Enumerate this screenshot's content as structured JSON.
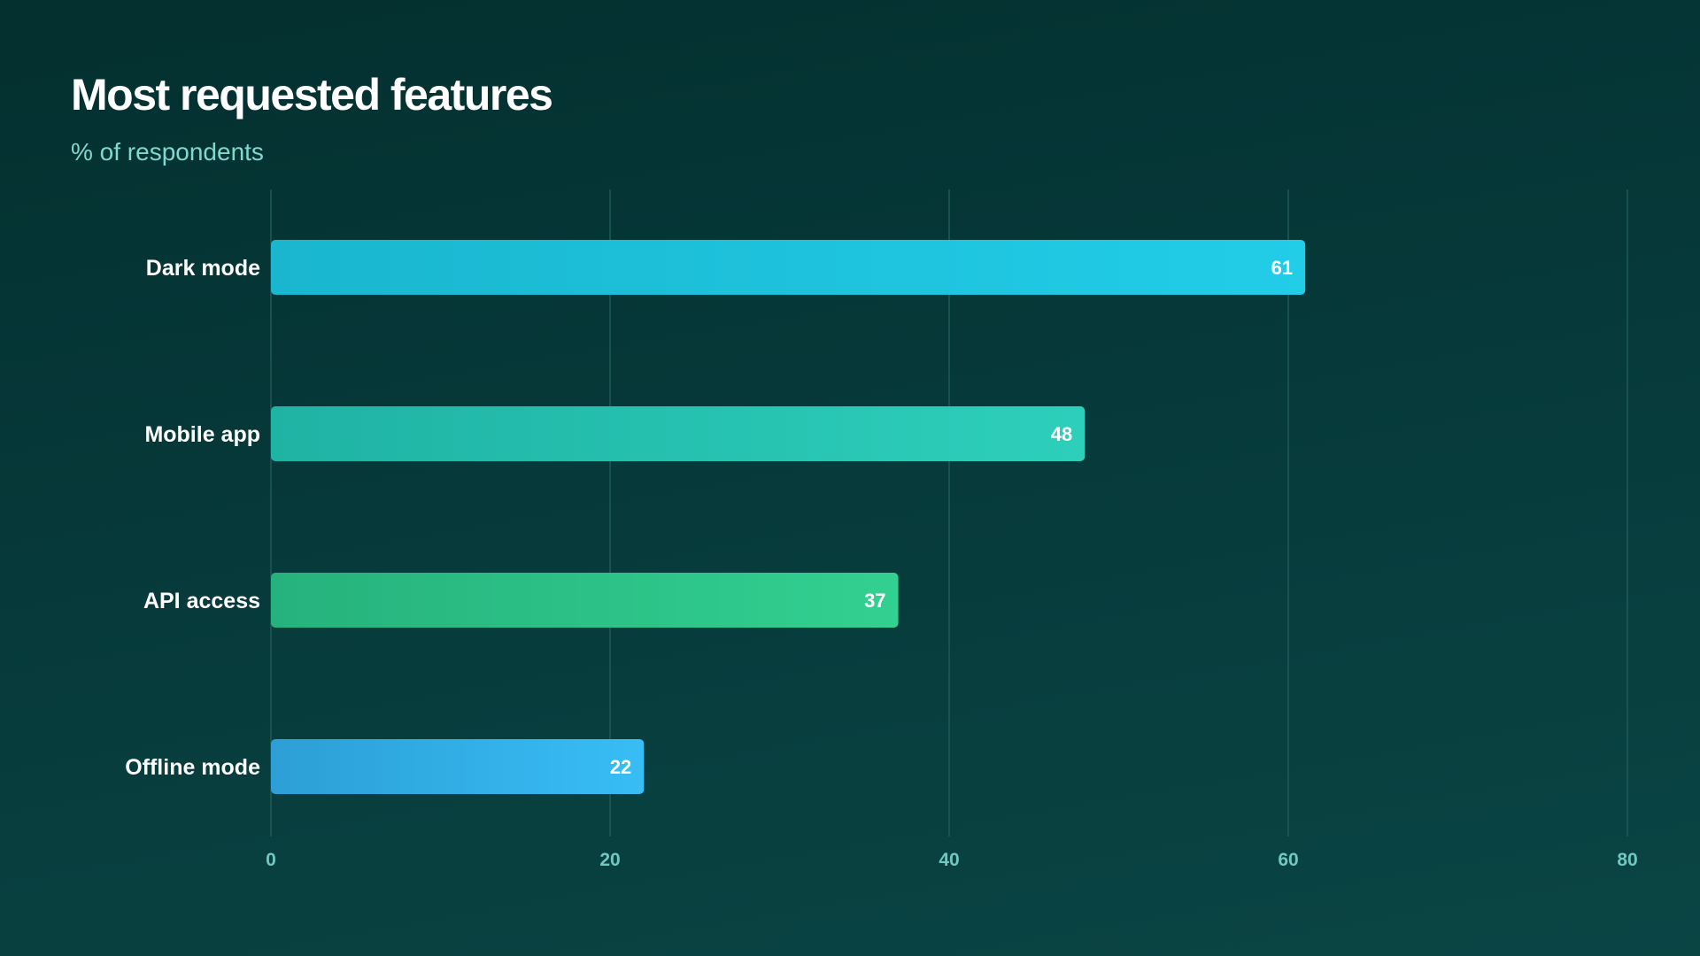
{
  "chart_data": {
    "type": "bar",
    "orientation": "horizontal",
    "title": "Most requested features",
    "subtitle": "% of respondents",
    "categories": [
      "Dark mode",
      "Mobile app",
      "API access",
      "Offline mode"
    ],
    "values": [
      61,
      48,
      37,
      22
    ],
    "xlim": [
      0,
      80
    ],
    "ticks": [
      0,
      20,
      40,
      60,
      80
    ],
    "grid": true,
    "legend": "none",
    "colors": [
      [
        "#1ab6cf",
        "#22cde8"
      ],
      [
        "#1fb3a4",
        "#2dcfbb"
      ],
      [
        "#26b27c",
        "#32d091"
      ],
      [
        "#2c9fd6",
        "#38bdf5"
      ]
    ],
    "gridline_color": "#1f5a58"
  }
}
